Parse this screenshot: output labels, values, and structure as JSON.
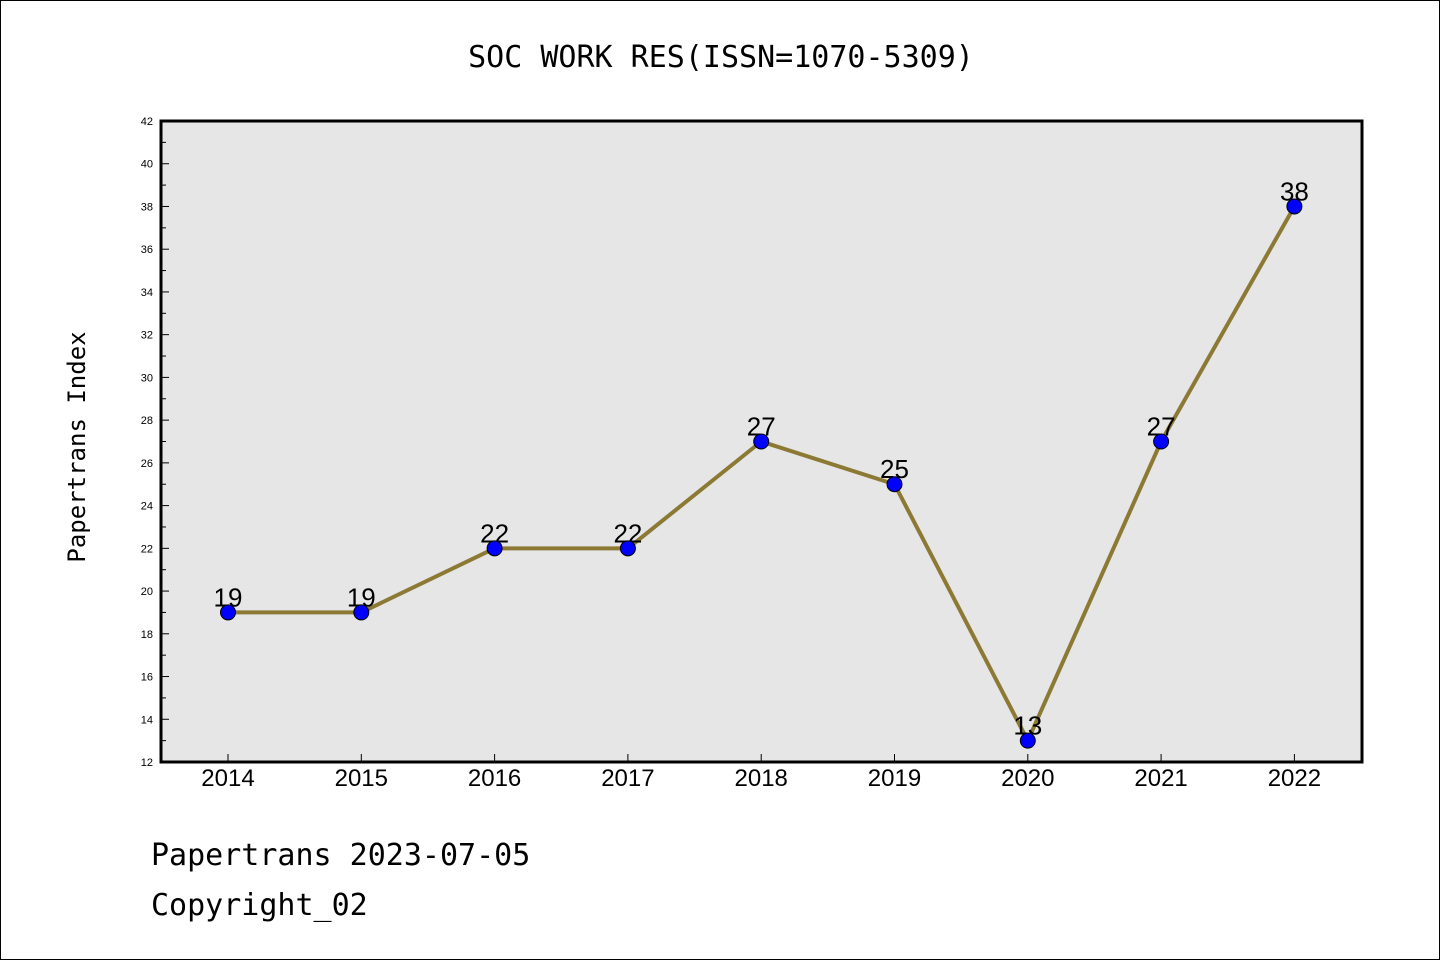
{
  "chart_data": {
    "type": "line",
    "title": "SOC WORK RES(ISSN=1070-5309)",
    "xlabel": "",
    "ylabel": "Papertrans Index",
    "categories": [
      "2014",
      "2015",
      "2016",
      "2017",
      "2018",
      "2019",
      "2020",
      "2021",
      "2022"
    ],
    "series": [
      {
        "values": [
          19,
          19,
          22,
          22,
          27,
          25,
          13,
          27,
          38
        ]
      }
    ],
    "data_labels": [
      "19",
      "19",
      "22",
      "22",
      "27",
      "25",
      "13",
      "27",
      "38"
    ],
    "ylim": [
      12,
      42
    ],
    "yticks": [
      "12",
      "14",
      "16",
      "18",
      "20",
      "22",
      "24",
      "26",
      "28",
      "30",
      "32",
      "34",
      "36",
      "38",
      "40",
      "42"
    ],
    "grid": false,
    "legend": "none",
    "colors": {
      "line": "#8c7a34",
      "marker": "#0000ff",
      "plot_background": "#e6e6e6"
    }
  },
  "footer": {
    "line1": "Papertrans 2023-07-05",
    "line2": "Copyright_02"
  }
}
